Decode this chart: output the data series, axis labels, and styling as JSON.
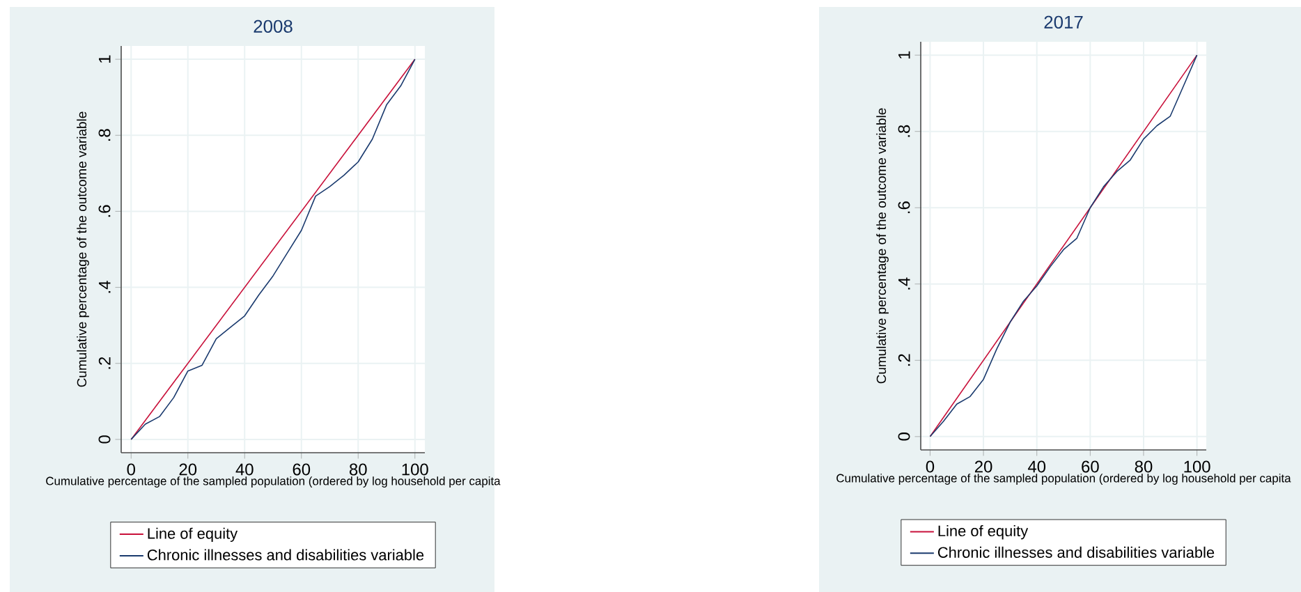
{
  "chart_data": [
    {
      "type": "line",
      "title": "2008",
      "xlabel": "Cumulative percentage of the sampled population (ordered by log household per capita",
      "ylabel": "Cumulative percentage of the outcome variable",
      "xlim": [
        -3.5,
        103.5
      ],
      "ylim": [
        -0.035,
        1.035
      ],
      "xticks": [
        0,
        20,
        40,
        60,
        80,
        100
      ],
      "yticks": [
        0,
        {
          "value": 0.2,
          "label": ".2"
        },
        {
          "value": 0.4,
          "label": ".4"
        },
        {
          "value": 0.6,
          "label": ".6"
        },
        {
          "value": 0.8,
          "label": ".8"
        },
        1
      ],
      "grid": true,
      "legend": "bottom",
      "series": [
        {
          "name": "Line of equity",
          "color": "#c8103a",
          "x": [
            0,
            100
          ],
          "values": [
            0,
            1
          ]
        },
        {
          "name": "Chronic illnesses and disabilities variable",
          "color": "#1a3a6e",
          "x": [
            0,
            5,
            10,
            15,
            20,
            25,
            30,
            35,
            40,
            45,
            50,
            55,
            60,
            65,
            70,
            75,
            80,
            85,
            90,
            95,
            100
          ],
          "values": [
            0,
            0.04,
            0.06,
            0.11,
            0.18,
            0.195,
            0.265,
            0.295,
            0.325,
            0.38,
            0.43,
            0.49,
            0.55,
            0.64,
            0.665,
            0.695,
            0.73,
            0.79,
            0.88,
            0.93,
            1
          ]
        }
      ]
    },
    {
      "type": "line",
      "title": "2017",
      "xlabel": "Cumulative percentage of the sampled population (ordered by log household per capita",
      "ylabel": "Cumulative percentage of the outcome variable",
      "xlim": [
        -3.5,
        103.5
      ],
      "ylim": [
        -0.035,
        1.035
      ],
      "xticks": [
        0,
        20,
        40,
        60,
        80,
        100
      ],
      "yticks": [
        0,
        {
          "value": 0.2,
          "label": ".2"
        },
        {
          "value": 0.4,
          "label": ".4"
        },
        {
          "value": 0.6,
          "label": ".6"
        },
        {
          "value": 0.8,
          "label": ".8"
        },
        1
      ],
      "grid": true,
      "legend": "bottom",
      "series": [
        {
          "name": "Line of equity",
          "color": "#c8103a",
          "x": [
            0,
            100
          ],
          "values": [
            0,
            1
          ]
        },
        {
          "name": "Chronic illnesses and disabilities variable",
          "color": "#1a3a6e",
          "x": [
            0,
            5,
            10,
            15,
            20,
            25,
            30,
            35,
            40,
            45,
            50,
            55,
            60,
            65,
            70,
            75,
            80,
            85,
            90,
            95,
            100
          ],
          "values": [
            0,
            0.04,
            0.085,
            0.105,
            0.15,
            0.23,
            0.3,
            0.355,
            0.395,
            0.445,
            0.49,
            0.52,
            0.6,
            0.655,
            0.695,
            0.725,
            0.78,
            0.815,
            0.84,
            0.92,
            1
          ]
        }
      ]
    }
  ]
}
